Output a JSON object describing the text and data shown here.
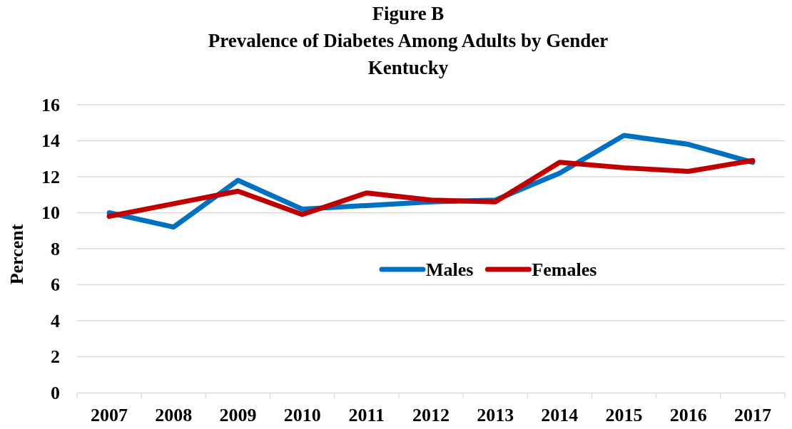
{
  "chart_data": {
    "type": "line",
    "title": "Figure B\nPrevalence of Diabetes Among Adults by Gender\nKentucky",
    "ylabel": "Percent",
    "categories": [
      "2007",
      "2008",
      "2009",
      "2010",
      "2011",
      "2012",
      "2013",
      "2014",
      "2015",
      "2016",
      "2017"
    ],
    "series": [
      {
        "name": "Males",
        "color": "#0070c0",
        "values": [
          10.0,
          9.2,
          11.8,
          10.2,
          10.4,
          10.6,
          10.7,
          12.2,
          14.3,
          13.8,
          12.8
        ]
      },
      {
        "name": "Females",
        "color": "#c00000",
        "values": [
          9.8,
          10.5,
          11.2,
          9.9,
          11.1,
          10.7,
          10.6,
          12.8,
          12.5,
          12.3,
          12.9
        ]
      }
    ],
    "ylim": [
      0,
      16
    ],
    "yticks": [
      0,
      2,
      4,
      6,
      8,
      10,
      12,
      14,
      16
    ],
    "grid": "y",
    "legend": "center",
    "marker": "none",
    "line_style": "solid"
  }
}
